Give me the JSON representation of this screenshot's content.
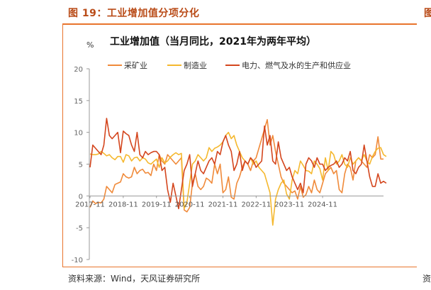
{
  "figure_caption": "图 19：工业增加值分项分化",
  "source_note": "资料来源：Wind，天风证券研究所",
  "edge_fragment_top": "图",
  "edge_fragment_bottom": "资",
  "colors": {
    "mining": "#f08a3a",
    "manufacturing": "#f5b82e",
    "utilities": "#d4461e",
    "accent": "#e8742c"
  },
  "chart_data": {
    "type": "line",
    "title": "工业增加值（当月同比，2021年为两年平均）",
    "ylabel": "%",
    "xlabel": "",
    "ylim": [
      -10,
      20
    ],
    "y_ticks": [
      "20",
      "15",
      "10",
      "5",
      "0",
      "-5",
      "-10"
    ],
    "x_tick_labels": [
      "2017-11",
      "2018-11",
      "2019-11",
      "2020-11",
      "2021-11",
      "2022-11",
      "2023-11",
      "2024-11"
    ],
    "x_start": "2017-11",
    "x_end": "2025-02",
    "legend_position": "top",
    "series": [
      {
        "name": "采矿业",
        "color": "#f08a3a",
        "values": [
          -1.8,
          -0.8,
          -1.2,
          -1.0,
          -1.1,
          -0.5,
          1.5,
          1.0,
          0.5,
          1.8,
          2.0,
          2.2,
          3.5,
          3.0,
          2.8,
          3.0,
          4.5,
          3.5,
          4.0,
          4.2,
          3.6,
          3.7,
          3.2,
          5.0,
          4.0,
          6.5,
          5.5,
          5.0,
          6.5,
          6.0,
          5.5,
          5.0,
          5.5,
          6.0,
          -2.2,
          -2.5,
          -1.8,
          2.0,
          3.5,
          1.5,
          1.0,
          1.5,
          2.8,
          2.5,
          2.0,
          5.0,
          3.5,
          5.0,
          0.5,
          1.0,
          3.0,
          -0.2,
          -0.5,
          2.0,
          3.0,
          4.5,
          5.5,
          5.0,
          4.0,
          5.5,
          6.0,
          7.5,
          9.0,
          10.5,
          12.0,
          8.0,
          9.5,
          7.0,
          5.0,
          3.0,
          2.0,
          1.5,
          1.0,
          0.5,
          0.8,
          -0.5,
          1.5,
          -0.2,
          0.2,
          1.5,
          0.5,
          2.5,
          1.0,
          0.5,
          2.0,
          3.5,
          4.0,
          4.5,
          3.5,
          4.0,
          1.0,
          0.5,
          3.5,
          5.0,
          4.5,
          2.5,
          5.5,
          6.0,
          5.5,
          5.0,
          4.5,
          6.5,
          6.0,
          6.5,
          9.3,
          5.8,
          5.8
        ]
      },
      {
        "name": "制造业",
        "color": "#f5b82e",
        "values": [
          6.6,
          6.5,
          6.5,
          6.6,
          7.0,
          6.7,
          6.3,
          6.5,
          6.0,
          5.7,
          6.2,
          6.2,
          5.3,
          6.5,
          6.3,
          5.5,
          6.0,
          6.1,
          5.5,
          6.0,
          5.8,
          5.2,
          5.0,
          5.4,
          5.8,
          4.5,
          6.0,
          5.2,
          5.5,
          6.1,
          6.5,
          6.8,
          6.5,
          6.7,
          -2.0,
          -1.0,
          2.0,
          5.0,
          5.5,
          6.5,
          6.0,
          5.5,
          6.0,
          7.6,
          7.0,
          7.5,
          7.7,
          8.0,
          8.5,
          9.5,
          10.0,
          9.0,
          9.5,
          8.0,
          7.0,
          6.0,
          5.5,
          5.0,
          6.0,
          5.0,
          5.5,
          4.5,
          4.0,
          3.5,
          2.0,
          0.5,
          -4.6,
          -0.5,
          1.0,
          2.0,
          2.5,
          0.3,
          -0.5,
          2.5,
          4.0,
          3.5,
          5.5,
          4.8,
          4.0,
          3.9,
          3.5,
          5.5,
          5.0,
          4.3,
          2.5,
          6.0,
          4.0,
          7.0,
          6.5,
          5.0,
          5.5,
          6.5,
          5.0,
          4.5,
          6.0,
          5.0,
          5.5,
          6.0,
          5.6,
          6.5,
          5.5,
          5.0,
          6.2,
          7.0,
          7.5,
          7.6,
          6.5,
          6.2
        ]
      },
      {
        "name": "电力、燃气及水的生产和供应业",
        "color": "#d4461e",
        "values": [
          4.5,
          8.0,
          7.5,
          7.0,
          6.5,
          8.0,
          12.2,
          9.5,
          9.0,
          9.5,
          10.0,
          6.8,
          10.2,
          9.8,
          9.5,
          8.0,
          7.0,
          10.0,
          6.5,
          6.0,
          7.0,
          6.5,
          6.8,
          7.0,
          7.0,
          6.5,
          4.0,
          4.5,
          1.0,
          -1.0,
          2.0,
          0.0,
          -2.0,
          1.0,
          4.0,
          5.0,
          6.5,
          1.5,
          3.5,
          5.5,
          4.0,
          3.5,
          4.5,
          5.5,
          6.0,
          5.0,
          7.0,
          6.5,
          8.5,
          9.5,
          8.0,
          7.0,
          4.0,
          5.0,
          7.0,
          4.0,
          5.5,
          5.0,
          6.0,
          5.5,
          4.5,
          5.0,
          5.5,
          11.0,
          8.0,
          9.5,
          5.5,
          5.0,
          8.5,
          6.0,
          5.0,
          4.0,
          4.5,
          3.0,
          2.0,
          1.0,
          2.0,
          0.5,
          5.0,
          6.0,
          5.5,
          4.5,
          6.0,
          5.0,
          5.0,
          4.0,
          4.5,
          4.8,
          5.0,
          5.5,
          4.5,
          5.0,
          6.0,
          5.5,
          7.0,
          4.0,
          3.5,
          4.5,
          5.0,
          8.0,
          5.5,
          3.0,
          1.5,
          1.5,
          3.5,
          2.0,
          2.3,
          2.0
        ]
      }
    ]
  }
}
